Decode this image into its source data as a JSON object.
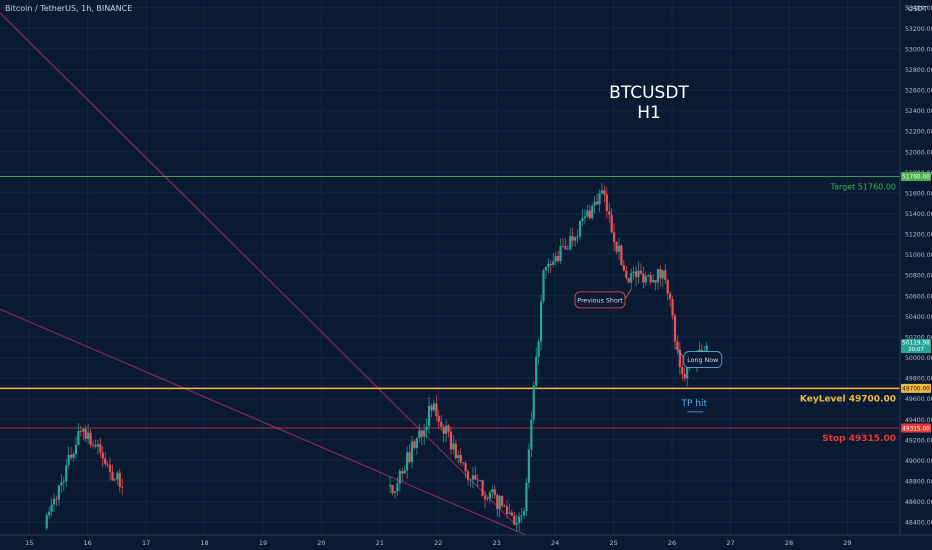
{
  "header": {
    "symbol": "Bitcoin / TetherUS, 1h, BINANCE",
    "currency": "USDT"
  },
  "colors": {
    "background": "#0b1a33",
    "up": "#26a69a",
    "down": "#ef5350",
    "target": "#4caf50",
    "keylevel": "#f5b93e",
    "stop": "#e53935",
    "trendline": "#9c2a5a",
    "tp": "#5dade2",
    "text": "#ffffff"
  },
  "chart_data": {
    "type": "candlestick",
    "title": "BTCUSDT",
    "subtitle": "H1",
    "ylim": [
      48275,
      53475
    ],
    "xlim": [
      14.5,
      29.9
    ],
    "y_ticks": [
      48400,
      48600,
      48800,
      49000,
      49200,
      49400,
      49600,
      49800,
      50000,
      50200,
      50400,
      50600,
      50800,
      51000,
      51200,
      51400,
      51600,
      51800,
      52000,
      52200,
      52400,
      52600,
      52800,
      53000,
      53200,
      53400
    ],
    "x_ticks": [
      "15",
      "16",
      "17",
      "18",
      "19",
      "20",
      "21",
      "22",
      "23",
      "24",
      "25",
      "26",
      "27",
      "28",
      "29"
    ],
    "levels": [
      {
        "name": "Target",
        "value": 51760,
        "label": "Target 51760.00",
        "axis_label": "51760.00",
        "color": "#4caf50"
      },
      {
        "name": "KeyLevel",
        "value": 49700,
        "label": "KeyLevel 49700.00",
        "axis_label": "49700.00",
        "color": "#f5b93e"
      },
      {
        "name": "Stop",
        "value": 49315,
        "label": "Stop 49315.00",
        "axis_label": "49315.00",
        "color": "#e53935"
      }
    ],
    "last_price": {
      "value": 50119.98,
      "label": "50119.98",
      "countdown": "20:07"
    },
    "annotations": [
      {
        "text": "Previous Short",
        "x": 24.75,
        "y": 50560
      },
      {
        "text": "Long Now",
        "x": 26.2,
        "y": 49980
      },
      {
        "text": "TP hit",
        "x": 26.38,
        "y": 49530
      }
    ],
    "trendlines": [
      {
        "x1": 14.5,
        "y1": 53350,
        "x2": 23.3,
        "y2": 48390
      },
      {
        "x1": 14.5,
        "y1": 50470,
        "x2": 23.5,
        "y2": 48275
      }
    ],
    "key_points": [
      {
        "x": 15.3,
        "y": 48400
      },
      {
        "x": 15.9,
        "y": 49340
      },
      {
        "x": 16.5,
        "y": 48800
      },
      {
        "x": 21.2,
        "y": 48700
      },
      {
        "x": 21.9,
        "y": 49520
      },
      {
        "x": 22.5,
        "y": 48850
      },
      {
        "x": 23.45,
        "y": 48380
      },
      {
        "x": 23.8,
        "y": 50800
      },
      {
        "x": 24.2,
        "y": 51100
      },
      {
        "x": 24.8,
        "y": 51600
      },
      {
        "x": 25.2,
        "y": 50800
      },
      {
        "x": 25.9,
        "y": 50800
      },
      {
        "x": 26.15,
        "y": 49780
      },
      {
        "x": 26.6,
        "y": 50119.98
      }
    ]
  }
}
